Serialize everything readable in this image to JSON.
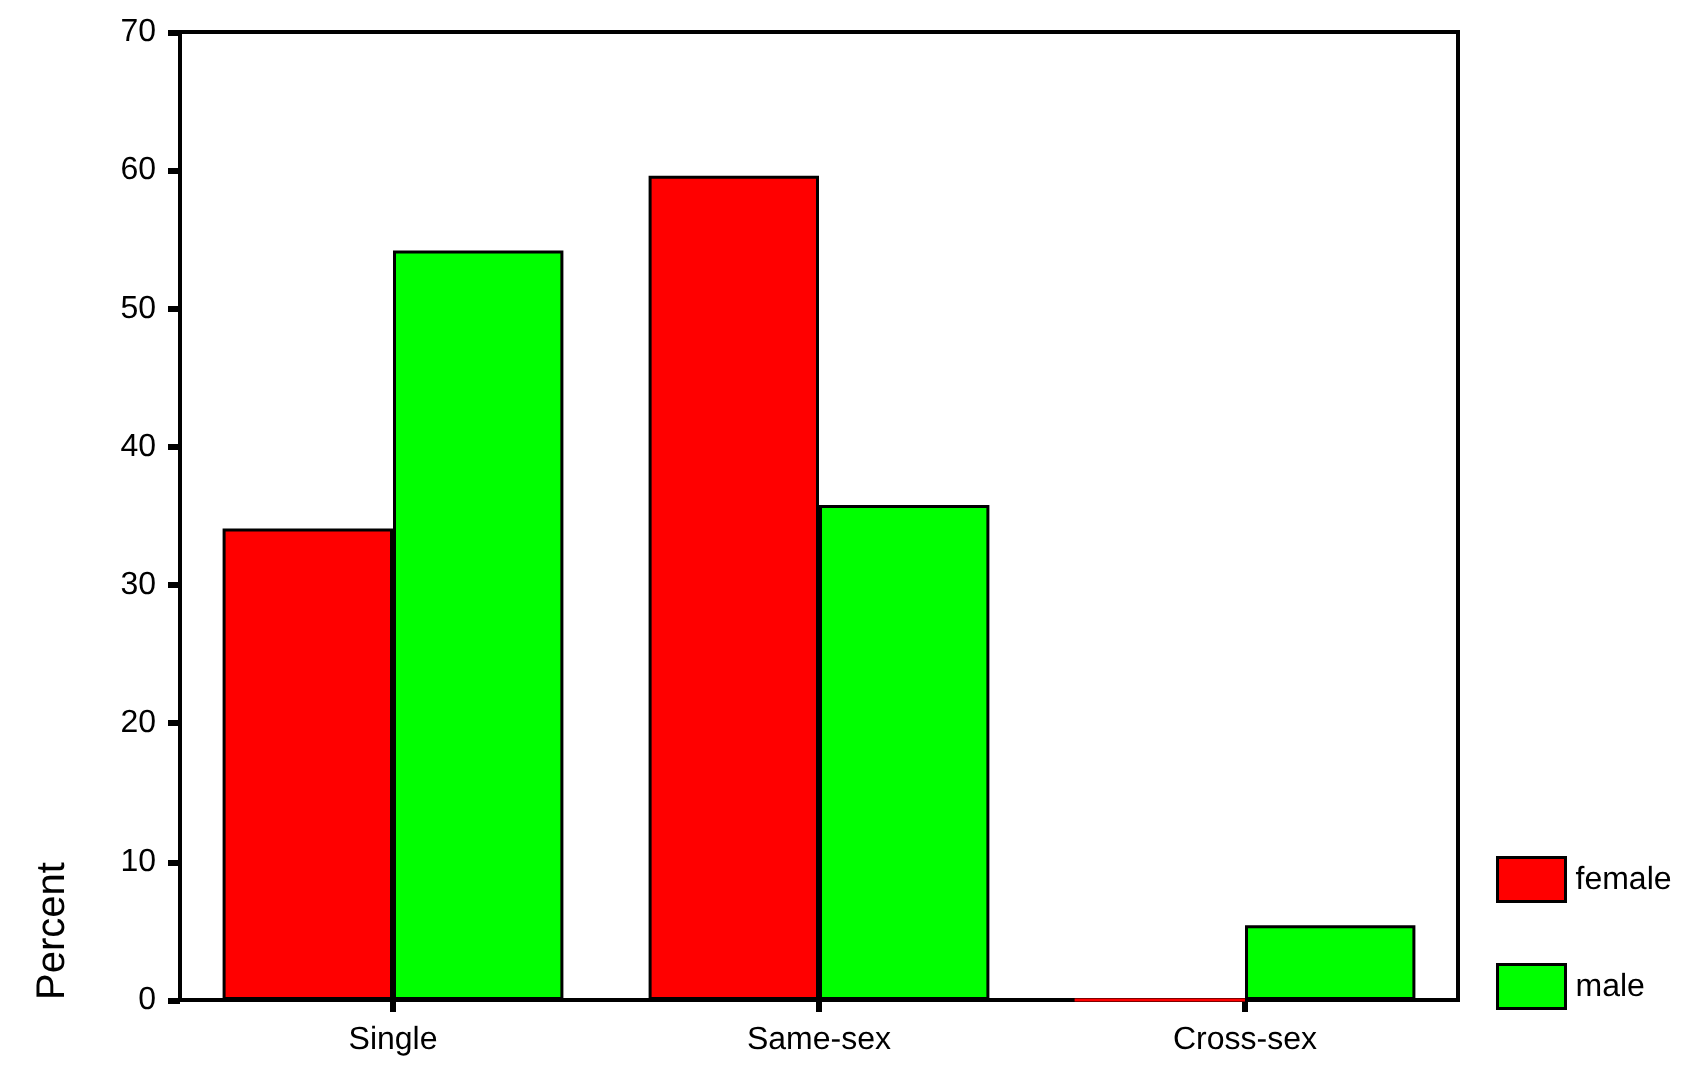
{
  "chart_data": {
    "type": "bar",
    "ylabel": "Percent",
    "categories": [
      "Single",
      "Same-sex",
      "Cross-sex"
    ],
    "series": [
      {
        "name": "female",
        "color": "#ff0000",
        "values": [
          34.1,
          59.6,
          0
        ]
      },
      {
        "name": "male",
        "color": "#00ff00",
        "values": [
          54.2,
          35.8,
          5.4
        ]
      }
    ],
    "ylim": [
      0,
      70
    ],
    "yticks": [
      0,
      10,
      20,
      30,
      40,
      50,
      60,
      70
    ],
    "grid": false,
    "legend": "bottom right"
  }
}
